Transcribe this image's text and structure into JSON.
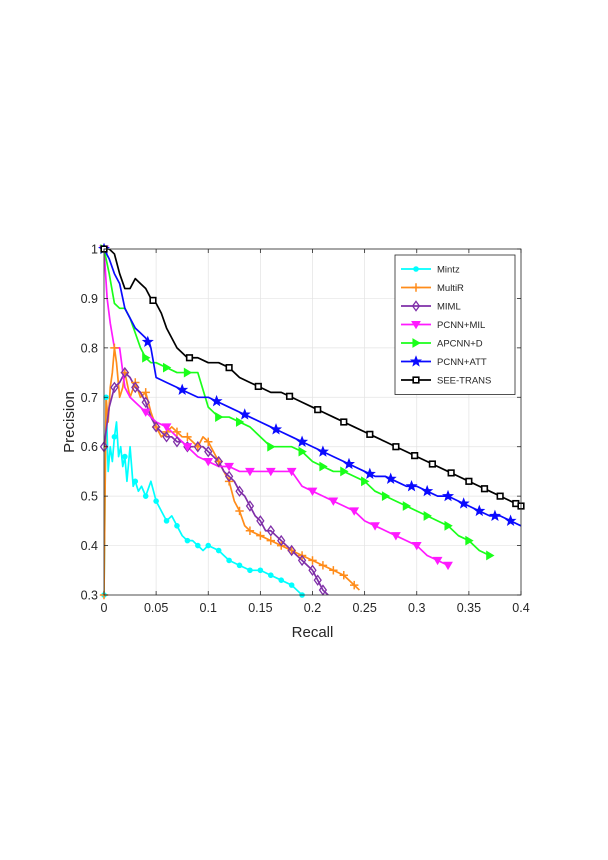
{
  "chart_data": {
    "type": "line",
    "xlabel": "Recall",
    "ylabel": "Precision",
    "xlim": [
      0,
      0.4
    ],
    "ylim": [
      0.3,
      1.0
    ],
    "xticks": [
      0,
      0.05,
      0.1,
      0.15,
      0.2,
      0.25,
      0.3,
      0.35,
      0.4
    ],
    "xtick_labels": [
      "0",
      "0.05",
      "0.1",
      "0.15",
      "0.2",
      "0.25",
      "0.3",
      "0.35",
      "0.4"
    ],
    "yticks": [
      0.3,
      0.4,
      0.5,
      0.6,
      0.7,
      0.8,
      0.9,
      1.0
    ],
    "ytick_labels": [
      "0.3",
      "0.4",
      "0.5",
      "0.6",
      "0.7",
      "0.8",
      "0.9",
      "1"
    ],
    "grid": true,
    "legend_position": "top-right",
    "series": [
      {
        "name": "Mintz",
        "color": "#00ffff",
        "marker": "dot",
        "x": [
          0.0,
          0.002,
          0.004,
          0.006,
          0.008,
          0.01,
          0.012,
          0.014,
          0.016,
          0.018,
          0.02,
          0.022,
          0.025,
          0.028,
          0.03,
          0.033,
          0.036,
          0.04,
          0.045,
          0.05,
          0.055,
          0.06,
          0.065,
          0.07,
          0.075,
          0.08,
          0.085,
          0.09,
          0.095,
          0.1,
          0.105,
          0.11,
          0.115,
          0.12,
          0.13,
          0.14,
          0.15,
          0.16,
          0.17,
          0.18,
          0.185,
          0.19
        ],
        "y": [
          0.3,
          0.7,
          0.55,
          0.6,
          0.57,
          0.62,
          0.65,
          0.58,
          0.6,
          0.56,
          0.58,
          0.53,
          0.6,
          0.52,
          0.53,
          0.51,
          0.52,
          0.5,
          0.53,
          0.49,
          0.47,
          0.45,
          0.46,
          0.44,
          0.42,
          0.41,
          0.41,
          0.4,
          0.39,
          0.4,
          0.395,
          0.39,
          0.38,
          0.37,
          0.36,
          0.35,
          0.35,
          0.34,
          0.33,
          0.32,
          0.31,
          0.3
        ],
        "mx": [
          0.0,
          0.002,
          0.01,
          0.02,
          0.03,
          0.04,
          0.05,
          0.06,
          0.07,
          0.08,
          0.09,
          0.1,
          0.11,
          0.12,
          0.13,
          0.14,
          0.15,
          0.16,
          0.17,
          0.18,
          0.19
        ]
      },
      {
        "name": "MultiR",
        "color": "#ff8c1a",
        "marker": "plus",
        "x": [
          0.0,
          0.002,
          0.004,
          0.006,
          0.008,
          0.01,
          0.012,
          0.015,
          0.018,
          0.02,
          0.025,
          0.03,
          0.035,
          0.04,
          0.045,
          0.05,
          0.055,
          0.06,
          0.065,
          0.07,
          0.075,
          0.08,
          0.085,
          0.09,
          0.095,
          0.1,
          0.105,
          0.11,
          0.115,
          0.12,
          0.125,
          0.13,
          0.135,
          0.14,
          0.15,
          0.16,
          0.17,
          0.18,
          0.19,
          0.2,
          0.21,
          0.22,
          0.23,
          0.24,
          0.245
        ],
        "y": [
          0.3,
          0.7,
          0.65,
          0.72,
          0.75,
          0.8,
          0.77,
          0.7,
          0.72,
          0.75,
          0.7,
          0.73,
          0.7,
          0.71,
          0.67,
          0.64,
          0.62,
          0.63,
          0.64,
          0.63,
          0.62,
          0.62,
          0.61,
          0.6,
          0.62,
          0.61,
          0.59,
          0.57,
          0.55,
          0.53,
          0.49,
          0.47,
          0.44,
          0.43,
          0.42,
          0.41,
          0.4,
          0.39,
          0.38,
          0.37,
          0.36,
          0.35,
          0.34,
          0.32,
          0.31
        ],
        "mx": [
          0.0,
          0.01,
          0.02,
          0.03,
          0.04,
          0.05,
          0.06,
          0.07,
          0.08,
          0.09,
          0.1,
          0.11,
          0.12,
          0.13,
          0.14,
          0.15,
          0.16,
          0.17,
          0.18,
          0.19,
          0.2,
          0.21,
          0.22,
          0.23,
          0.24
        ]
      },
      {
        "name": "MIML",
        "color": "#7f2fa8",
        "marker": "diamond",
        "x": [
          0.0,
          0.005,
          0.01,
          0.015,
          0.02,
          0.025,
          0.03,
          0.035,
          0.04,
          0.045,
          0.05,
          0.055,
          0.06,
          0.065,
          0.07,
          0.075,
          0.08,
          0.085,
          0.09,
          0.095,
          0.1,
          0.105,
          0.11,
          0.115,
          0.12,
          0.125,
          0.13,
          0.135,
          0.14,
          0.145,
          0.15,
          0.155,
          0.16,
          0.165,
          0.17,
          0.175,
          0.18,
          0.185,
          0.19,
          0.195,
          0.2,
          0.205,
          0.21,
          0.215
        ],
        "y": [
          0.6,
          0.68,
          0.72,
          0.73,
          0.75,
          0.74,
          0.72,
          0.71,
          0.69,
          0.66,
          0.64,
          0.63,
          0.62,
          0.62,
          0.61,
          0.61,
          0.6,
          0.6,
          0.6,
          0.6,
          0.59,
          0.58,
          0.57,
          0.55,
          0.54,
          0.53,
          0.51,
          0.5,
          0.48,
          0.46,
          0.45,
          0.43,
          0.43,
          0.42,
          0.41,
          0.4,
          0.39,
          0.38,
          0.37,
          0.36,
          0.35,
          0.33,
          0.31,
          0.3
        ],
        "mx": [
          0.0,
          0.01,
          0.02,
          0.03,
          0.04,
          0.05,
          0.06,
          0.07,
          0.08,
          0.09,
          0.1,
          0.11,
          0.12,
          0.13,
          0.14,
          0.15,
          0.16,
          0.17,
          0.18,
          0.19,
          0.2,
          0.205,
          0.21
        ]
      },
      {
        "name": "PCNN+MIL",
        "color": "#ff1aff",
        "marker": "triangle-down",
        "x": [
          0.0,
          0.003,
          0.006,
          0.01,
          0.015,
          0.02,
          0.025,
          0.03,
          0.035,
          0.04,
          0.05,
          0.06,
          0.07,
          0.08,
          0.09,
          0.1,
          0.11,
          0.12,
          0.13,
          0.14,
          0.15,
          0.16,
          0.17,
          0.18,
          0.19,
          0.2,
          0.21,
          0.22,
          0.23,
          0.24,
          0.25,
          0.26,
          0.27,
          0.28,
          0.29,
          0.3,
          0.31,
          0.32,
          0.33
        ],
        "y": [
          1.0,
          0.9,
          0.85,
          0.8,
          0.8,
          0.72,
          0.7,
          0.69,
          0.68,
          0.67,
          0.65,
          0.64,
          0.62,
          0.6,
          0.58,
          0.57,
          0.56,
          0.56,
          0.55,
          0.55,
          0.55,
          0.55,
          0.55,
          0.55,
          0.52,
          0.51,
          0.5,
          0.49,
          0.48,
          0.47,
          0.45,
          0.44,
          0.43,
          0.42,
          0.41,
          0.4,
          0.38,
          0.37,
          0.36
        ],
        "mx": [
          0.0,
          0.04,
          0.06,
          0.08,
          0.1,
          0.12,
          0.14,
          0.16,
          0.18,
          0.2,
          0.22,
          0.24,
          0.26,
          0.28,
          0.3,
          0.32,
          0.33
        ]
      },
      {
        "name": "APCNN+D",
        "color": "#1aff1a",
        "marker": "triangle-right",
        "x": [
          0.0,
          0.005,
          0.01,
          0.015,
          0.02,
          0.025,
          0.03,
          0.035,
          0.04,
          0.045,
          0.05,
          0.06,
          0.07,
          0.08,
          0.09,
          0.1,
          0.11,
          0.12,
          0.13,
          0.14,
          0.15,
          0.16,
          0.17,
          0.18,
          0.19,
          0.2,
          0.21,
          0.22,
          0.23,
          0.24,
          0.25,
          0.26,
          0.27,
          0.28,
          0.29,
          0.3,
          0.31,
          0.32,
          0.33,
          0.34,
          0.35,
          0.36,
          0.37
        ],
        "y": [
          1.0,
          0.95,
          0.89,
          0.88,
          0.88,
          0.86,
          0.83,
          0.8,
          0.78,
          0.77,
          0.77,
          0.76,
          0.75,
          0.75,
          0.75,
          0.68,
          0.66,
          0.66,
          0.65,
          0.64,
          0.62,
          0.6,
          0.6,
          0.6,
          0.59,
          0.57,
          0.56,
          0.55,
          0.55,
          0.54,
          0.53,
          0.51,
          0.5,
          0.49,
          0.48,
          0.47,
          0.46,
          0.45,
          0.44,
          0.42,
          0.41,
          0.39,
          0.38
        ],
        "mx": [
          0.0,
          0.04,
          0.06,
          0.08,
          0.11,
          0.13,
          0.16,
          0.19,
          0.21,
          0.23,
          0.25,
          0.27,
          0.29,
          0.31,
          0.33,
          0.35,
          0.37
        ]
      },
      {
        "name": "PCNN+ATT",
        "color": "#0a0aff",
        "marker": "star",
        "x": [
          0.0,
          0.005,
          0.01,
          0.015,
          0.02,
          0.025,
          0.03,
          0.035,
          0.04,
          0.045,
          0.05,
          0.06,
          0.07,
          0.08,
          0.09,
          0.1,
          0.11,
          0.12,
          0.13,
          0.14,
          0.15,
          0.16,
          0.17,
          0.18,
          0.19,
          0.2,
          0.21,
          0.22,
          0.23,
          0.24,
          0.25,
          0.26,
          0.27,
          0.28,
          0.29,
          0.3,
          0.31,
          0.32,
          0.33,
          0.34,
          0.35,
          0.36,
          0.37,
          0.38,
          0.39,
          0.4
        ],
        "y": [
          1.0,
          0.98,
          0.95,
          0.93,
          0.88,
          0.86,
          0.84,
          0.83,
          0.82,
          0.8,
          0.74,
          0.73,
          0.72,
          0.71,
          0.7,
          0.7,
          0.69,
          0.68,
          0.67,
          0.66,
          0.65,
          0.64,
          0.63,
          0.62,
          0.61,
          0.6,
          0.59,
          0.58,
          0.57,
          0.56,
          0.55,
          0.54,
          0.54,
          0.53,
          0.52,
          0.52,
          0.51,
          0.5,
          0.5,
          0.49,
          0.48,
          0.47,
          0.46,
          0.46,
          0.45,
          0.44
        ],
        "mx": [
          0.0,
          0.042,
          0.075,
          0.108,
          0.135,
          0.165,
          0.19,
          0.21,
          0.235,
          0.255,
          0.275,
          0.295,
          0.31,
          0.33,
          0.345,
          0.36,
          0.375,
          0.39
        ]
      },
      {
        "name": "SEE-TRANS",
        "color": "#000000",
        "marker": "square",
        "x": [
          0.0,
          0.005,
          0.01,
          0.015,
          0.02,
          0.025,
          0.03,
          0.035,
          0.04,
          0.045,
          0.05,
          0.055,
          0.06,
          0.07,
          0.08,
          0.09,
          0.1,
          0.11,
          0.12,
          0.13,
          0.14,
          0.15,
          0.16,
          0.17,
          0.18,
          0.19,
          0.2,
          0.21,
          0.22,
          0.23,
          0.24,
          0.25,
          0.26,
          0.27,
          0.28,
          0.29,
          0.3,
          0.31,
          0.32,
          0.33,
          0.34,
          0.35,
          0.36,
          0.37,
          0.38,
          0.39,
          0.4
        ],
        "y": [
          1.0,
          1.0,
          0.99,
          0.95,
          0.92,
          0.92,
          0.94,
          0.93,
          0.92,
          0.9,
          0.89,
          0.87,
          0.84,
          0.8,
          0.78,
          0.78,
          0.77,
          0.77,
          0.76,
          0.74,
          0.73,
          0.72,
          0.71,
          0.71,
          0.7,
          0.69,
          0.68,
          0.67,
          0.66,
          0.65,
          0.64,
          0.63,
          0.62,
          0.61,
          0.6,
          0.59,
          0.58,
          0.57,
          0.56,
          0.55,
          0.54,
          0.53,
          0.52,
          0.51,
          0.5,
          0.49,
          0.48
        ],
        "mx": [
          0.0,
          0.047,
          0.082,
          0.12,
          0.148,
          0.178,
          0.205,
          0.23,
          0.255,
          0.28,
          0.298,
          0.315,
          0.333,
          0.35,
          0.365,
          0.38,
          0.395,
          0.4
        ]
      }
    ]
  }
}
